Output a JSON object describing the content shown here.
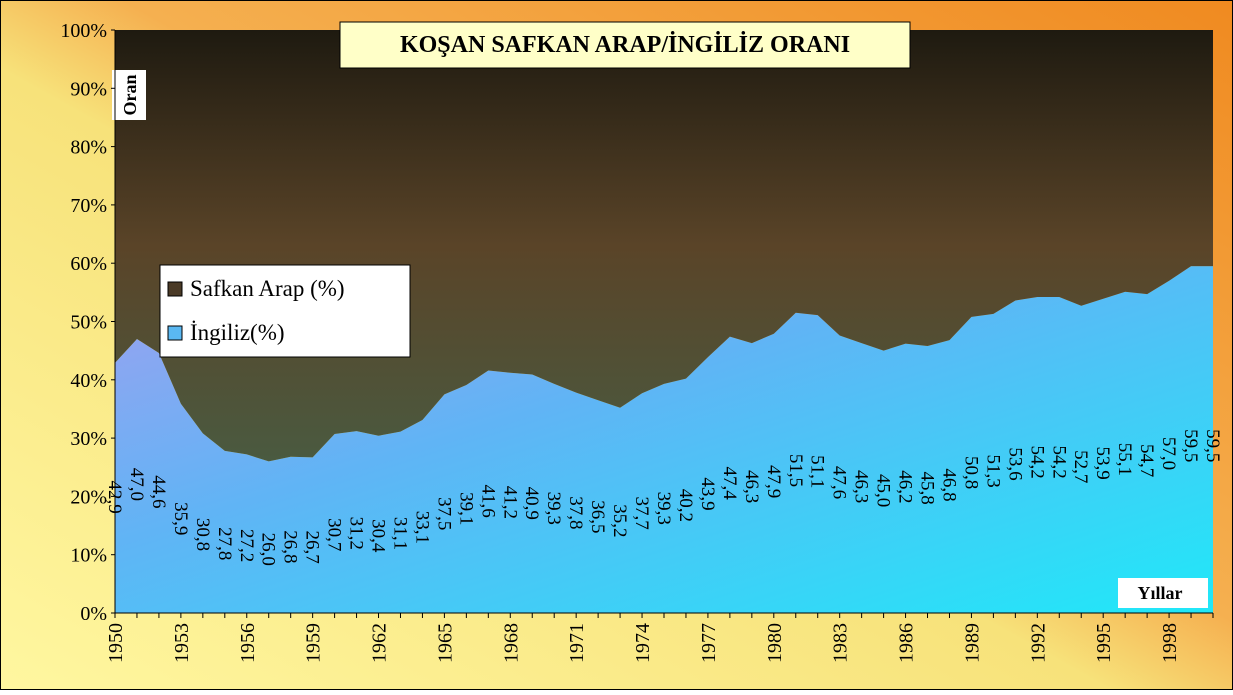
{
  "chart_data": {
    "type": "stacked_area",
    "title": "KOŞAN SAFKAN ARAP/İNGİLİZ ORANI",
    "y_label": "Oran",
    "x_label": "Yıllar",
    "categories": [
      "1950",
      null,
      null,
      "1953",
      null,
      null,
      "1956",
      null,
      null,
      "1959",
      null,
      null,
      "1962",
      null,
      null,
      "1965",
      null,
      null,
      "1968",
      null,
      null,
      "1971",
      null,
      null,
      "1974",
      null,
      null,
      "1977",
      null,
      null,
      "1980",
      null,
      null,
      "1983",
      null,
      null,
      "1986",
      null,
      null,
      "1989",
      null,
      null,
      "1992",
      null,
      null,
      "1995",
      null,
      null,
      "1998",
      null,
      null
    ],
    "series": [
      {
        "name": "İngiliz(%)",
        "color": "#5ab8f2",
        "values": [
          42.9,
          47.0,
          44.6,
          35.9,
          30.8,
          27.8,
          27.2,
          26.0,
          26.8,
          26.7,
          30.7,
          31.2,
          30.4,
          31.1,
          33.1,
          37.5,
          39.1,
          41.6,
          41.2,
          40.9,
          39.3,
          37.8,
          36.5,
          35.2,
          37.7,
          39.3,
          40.2,
          43.9,
          47.4,
          46.3,
          47.9,
          51.5,
          51.1,
          47.6,
          46.3,
          45.0,
          46.2,
          45.8,
          46.8,
          50.8,
          51.3,
          53.6,
          54.2,
          54.2,
          52.7,
          53.9,
          55.1,
          54.7,
          57.0,
          59.5,
          59.5
        ],
        "value_labels": [
          "42,9",
          "47,0",
          "44,6",
          "35,9",
          "30,8",
          "27,8",
          "27,2",
          "26,0",
          "26,8",
          "26,7",
          "30,7",
          "31,2",
          "30,4",
          "31,1",
          "33,1",
          "37,5",
          "39,1",
          "41,6",
          "41,2",
          "40,9",
          "39,3",
          "37,8",
          "36,5",
          "35,2",
          "37,7",
          "39,3",
          "40,2",
          "43,9",
          "47,4",
          "46,3",
          "47,9",
          "51,5",
          "51,1",
          "47,6",
          "46,3",
          "45,0",
          "46,2",
          "45,8",
          "46,8",
          "50,8",
          "51,3",
          "53,6",
          "54,2",
          "54,2",
          "52,7",
          "53,9",
          "55,1",
          "54,7",
          "57,0",
          "59,5",
          "59,5"
        ]
      },
      {
        "name": "Safkan Arap (%)",
        "color": "#4a3a26",
        "values": [
          57.1,
          53.0,
          55.4,
          64.1,
          69.2,
          72.2,
          72.8,
          74.0,
          73.2,
          73.3,
          69.3,
          68.8,
          69.6,
          68.9,
          66.9,
          62.5,
          60.9,
          58.4,
          58.8,
          59.1,
          60.7,
          62.2,
          63.5,
          64.8,
          62.3,
          60.7,
          59.8,
          56.1,
          52.6,
          53.7,
          52.1,
          48.5,
          48.9,
          52.4,
          53.7,
          55.0,
          53.8,
          54.2,
          53.2,
          49.2,
          48.7,
          46.4,
          45.8,
          45.8,
          47.3,
          46.1,
          44.9,
          45.3,
          43.0,
          40.5,
          40.5
        ]
      }
    ],
    "ylim": [
      0,
      100
    ],
    "yticks": [
      {
        "value": 0,
        "label": "0%"
      },
      {
        "value": 10,
        "label": "10%"
      },
      {
        "value": 20,
        "label": "20%"
      },
      {
        "value": 30,
        "label": "30%"
      },
      {
        "value": 40,
        "label": "40%"
      },
      {
        "value": 50,
        "label": "50%"
      },
      {
        "value": 60,
        "label": "60%"
      },
      {
        "value": 70,
        "label": "70%"
      },
      {
        "value": 80,
        "label": "80%"
      },
      {
        "value": 90,
        "label": "90%"
      },
      {
        "value": 100,
        "label": "100%"
      }
    ]
  }
}
